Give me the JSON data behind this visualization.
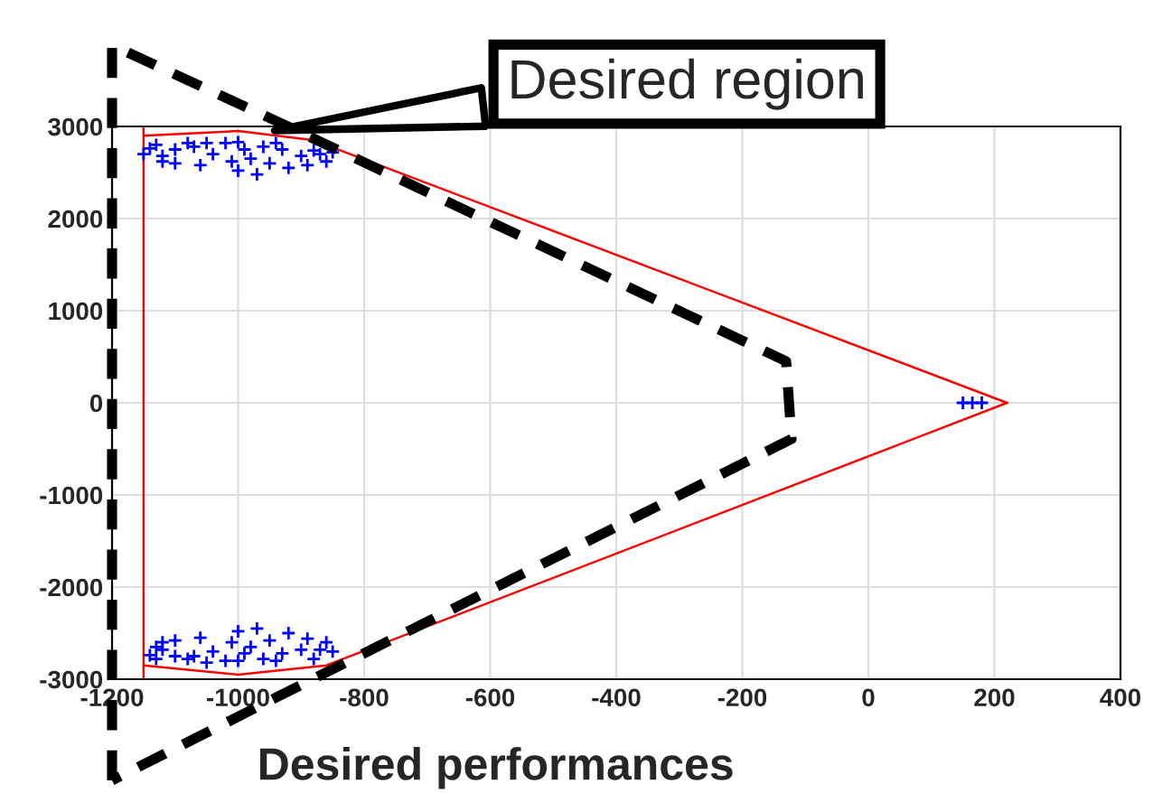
{
  "chart_data": {
    "type": "scatter",
    "xlim": [
      -1200,
      400
    ],
    "ylim": [
      -3000,
      3000
    ],
    "xticks": [
      -1200,
      -1000,
      -800,
      -600,
      -400,
      -200,
      0,
      200,
      400
    ],
    "yticks": [
      -3000,
      -2000,
      -1000,
      0,
      1000,
      2000,
      3000
    ],
    "grid": true,
    "annotations": [
      {
        "text": "Desired region",
        "x": -950,
        "y": 2950
      },
      "Desired performances"
    ],
    "ref_lines": [
      {
        "axis": "x",
        "value": -1150,
        "color": "#ff0000"
      }
    ],
    "series": [
      {
        "color": "#0000ff",
        "marker": "cross",
        "x": [
          -1150,
          -1140,
          -1120,
          -1100,
          -1080,
          -1060,
          -1040,
          -1020,
          -1000,
          -1000,
          -980,
          -960,
          -940,
          -920,
          -900,
          -880,
          -860,
          -850,
          -1100,
          -1050,
          -970,
          -930,
          -890,
          -1130,
          -1010,
          -950,
          -1070,
          -1120,
          -870,
          -990,
          -1130,
          -1140,
          -1120,
          -1100,
          -1080,
          -1060,
          -1040,
          -1020,
          -1000,
          -1000,
          -980,
          -960,
          -940,
          -920,
          -900,
          -880,
          -860,
          -850,
          -1100,
          -1050,
          -970,
          -930,
          -890,
          -1130,
          -1010,
          -950,
          -1070,
          -1120,
          -870,
          -990,
          150,
          165,
          180
        ],
        "values": [
          2700,
          2760,
          2620,
          2750,
          2820,
          2580,
          2700,
          2820,
          2830,
          2520,
          2650,
          2780,
          2820,
          2550,
          2680,
          2740,
          2620,
          2720,
          2600,
          2820,
          2480,
          2750,
          2580,
          2800,
          2620,
          2600,
          2780,
          2680,
          2700,
          2750,
          -2650,
          -2740,
          -2600,
          -2750,
          -2780,
          -2550,
          -2700,
          -2800,
          -2800,
          -2480,
          -2650,
          -2780,
          -2800,
          -2500,
          -2680,
          -2780,
          -2600,
          -2700,
          -2580,
          -2820,
          -2450,
          -2720,
          -2560,
          -2780,
          -2600,
          -2580,
          -2750,
          -2680,
          -2680,
          -2720,
          0,
          0,
          0
        ]
      },
      {
        "type": "line",
        "color": "#ff0000",
        "marker": "none",
        "x": [
          -1150,
          -1000,
          -880,
          220
        ],
        "values": [
          2900,
          2950,
          2850,
          0
        ]
      },
      {
        "type": "line",
        "color": "#ff0000",
        "marker": "none",
        "x": [
          -1150,
          -1000,
          -860,
          220
        ],
        "values": [
          -2850,
          -2950,
          -2850,
          0
        ]
      }
    ]
  }
}
